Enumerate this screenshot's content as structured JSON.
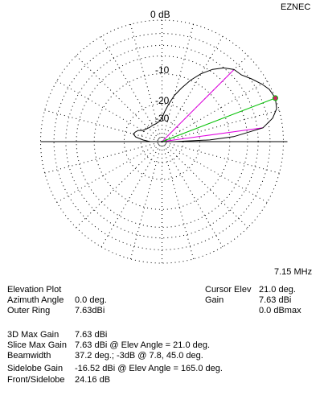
{
  "app_name": "EZNEC",
  "frequency": "7.15 MHz",
  "ring_labels": [
    "0 dB",
    "-10",
    "-20",
    "-30"
  ],
  "info": {
    "plot_type": "Elevation Plot",
    "azimuth_label": "Azimuth Angle",
    "azimuth_value": "0.0 deg.",
    "outer_ring_label": "Outer Ring",
    "outer_ring_value": "7.63dBi",
    "max_gain_label": "3D Max Gain",
    "max_gain_value": "7.63 dBi",
    "slice_max_label": "Slice Max Gain",
    "slice_max_value": "7.63 dBi @ Elev Angle = 21.0 deg.",
    "beamwidth_label": "Beamwidth",
    "beamwidth_value": "37.2 deg.; -3dB @ 7.8, 45.0 deg.",
    "sidelobe_label": "Sidelobe Gain",
    "sidelobe_value": "-16.52 dBi @ Elev Angle = 165.0 deg.",
    "front_side_label": "Front/Sidelobe",
    "front_side_value": "24.16 dB"
  },
  "cursor": {
    "elev_label": "Cursor Elev",
    "elev_value": "21.0 deg.",
    "gain_label": "Gain",
    "gain_value": "7.63 dBi",
    "gain_rel_value": "0.0 dBmax"
  },
  "colors": {
    "pattern": "#000000",
    "max_gain_line": "#00c000",
    "beamwidth_lines": "#e000e0",
    "cursor_dot": "#cc2266",
    "grid": "#000000"
  },
  "chart_data": {
    "type": "polar",
    "scale": "log (ARRL), dB relative to max",
    "outer_ring_dbi": 7.63,
    "rings_db": [
      0,
      -10,
      -20,
      -30
    ],
    "radials_every_deg": 15,
    "series": [
      {
        "angle_deg": [
          0,
          2,
          4,
          7.8,
          12,
          16,
          21,
          26,
          30,
          35,
          40,
          45,
          50,
          55,
          60,
          65,
          70,
          75,
          80,
          85,
          90,
          95,
          100,
          110,
          120,
          130,
          140,
          150,
          155,
          160,
          165,
          170,
          175,
          180
        ],
        "rel_db": [
          -40,
          -16,
          -9,
          -3,
          -1.2,
          -0.3,
          0,
          -0.3,
          -0.9,
          -1.8,
          -2.7,
          -3,
          -4,
          -5.5,
          -7.5,
          -10,
          -13,
          -16,
          -20,
          -24,
          -28,
          -30,
          -31,
          -32,
          -32,
          -32,
          -31,
          -29,
          -26.2,
          -25,
          -24.15,
          -26,
          -32,
          -40
        ]
      }
    ],
    "max_gain_angle_deg": 21.0,
    "beamwidth_angles_deg": [
      7.8,
      45.0
    ],
    "sidelobe_angle_deg": 165.0
  }
}
